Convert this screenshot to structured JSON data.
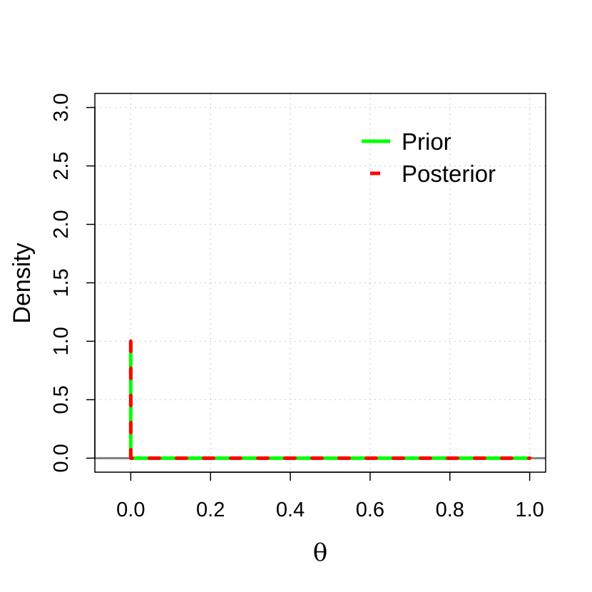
{
  "chart_data": {
    "type": "line",
    "title": "",
    "xlabel": "θ",
    "ylabel": "Density",
    "xlim": [
      -0.09,
      1.04
    ],
    "ylim": [
      -0.12,
      3.12
    ],
    "xticks": [
      0.0,
      0.2,
      0.4,
      0.6,
      0.8,
      1.0
    ],
    "xtick_labels": [
      "0.0",
      "0.2",
      "0.4",
      "0.6",
      "0.8",
      "1.0"
    ],
    "yticks": [
      0.0,
      0.5,
      1.0,
      1.5,
      2.0,
      2.5,
      3.0
    ],
    "ytick_labels": [
      "0.0",
      "0.5",
      "1.0",
      "1.5",
      "2.0",
      "2.5",
      "3.0"
    ],
    "grid": true,
    "hline": {
      "y": 0,
      "color": "#808080"
    },
    "legend": {
      "position": "top-right",
      "entries": [
        "Prior",
        "Posterior"
      ]
    },
    "series": [
      {
        "name": "Prior",
        "color": "#00ff00",
        "style": "solid",
        "x": [
          0.0,
          0.0,
          1.0
        ],
        "y": [
          1.0,
          0.0,
          0.0
        ]
      },
      {
        "name": "Posterior",
        "color": "#ff0000",
        "style": "dashed",
        "x": [
          0.0,
          0.0,
          1.0
        ],
        "y": [
          1.0,
          0.0,
          0.0
        ]
      }
    ]
  }
}
